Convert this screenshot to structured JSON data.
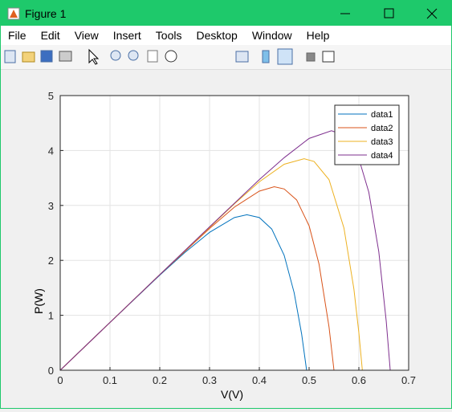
{
  "window": {
    "title": "Figure 1",
    "menu": [
      "File",
      "Edit",
      "View",
      "Insert",
      "Tools",
      "Desktop",
      "Window",
      "Help"
    ]
  },
  "chart_data": {
    "type": "line",
    "xlabel": "V(V)",
    "ylabel": "P(W)",
    "xlim": [
      0,
      0.7
    ],
    "ylim": [
      0,
      5
    ],
    "xticks": [
      0,
      0.1,
      0.2,
      0.3,
      0.4,
      0.5,
      0.6,
      0.7
    ],
    "yticks": [
      0,
      1,
      2,
      3,
      4,
      5
    ],
    "grid": true,
    "legend": "top-right",
    "series": [
      {
        "name": "data1",
        "color": "#0072bd",
        "x": [
          0,
          0.1,
          0.2,
          0.25,
          0.3,
          0.35,
          0.375,
          0.4,
          0.425,
          0.45,
          0.47,
          0.485,
          0.495
        ],
        "values": [
          0,
          0.87,
          1.73,
          2.14,
          2.51,
          2.78,
          2.83,
          2.78,
          2.57,
          2.09,
          1.41,
          0.66,
          0
        ]
      },
      {
        "name": "data2",
        "color": "#d95319",
        "x": [
          0,
          0.1,
          0.2,
          0.3,
          0.35,
          0.4,
          0.43,
          0.45,
          0.475,
          0.5,
          0.52,
          0.54,
          0.55
        ],
        "values": [
          0,
          0.87,
          1.74,
          2.58,
          2.97,
          3.26,
          3.34,
          3.3,
          3.1,
          2.63,
          1.93,
          0.79,
          0
        ]
      },
      {
        "name": "data3",
        "color": "#edb120",
        "x": [
          0,
          0.1,
          0.2,
          0.3,
          0.35,
          0.4,
          0.45,
          0.49,
          0.51,
          0.54,
          0.57,
          0.59,
          0.6,
          0.607
        ],
        "values": [
          0,
          0.87,
          1.74,
          2.6,
          3.03,
          3.43,
          3.75,
          3.85,
          3.8,
          3.47,
          2.59,
          1.48,
          0.68,
          0
        ]
      },
      {
        "name": "data4",
        "color": "#7e2f8e",
        "x": [
          0,
          0.1,
          0.2,
          0.3,
          0.4,
          0.45,
          0.5,
          0.545,
          0.57,
          0.6,
          0.62,
          0.64,
          0.655,
          0.663
        ],
        "values": [
          0,
          0.87,
          1.74,
          2.61,
          3.47,
          3.87,
          4.22,
          4.36,
          4.28,
          3.85,
          3.24,
          2.16,
          0.89,
          0
        ]
      }
    ]
  }
}
